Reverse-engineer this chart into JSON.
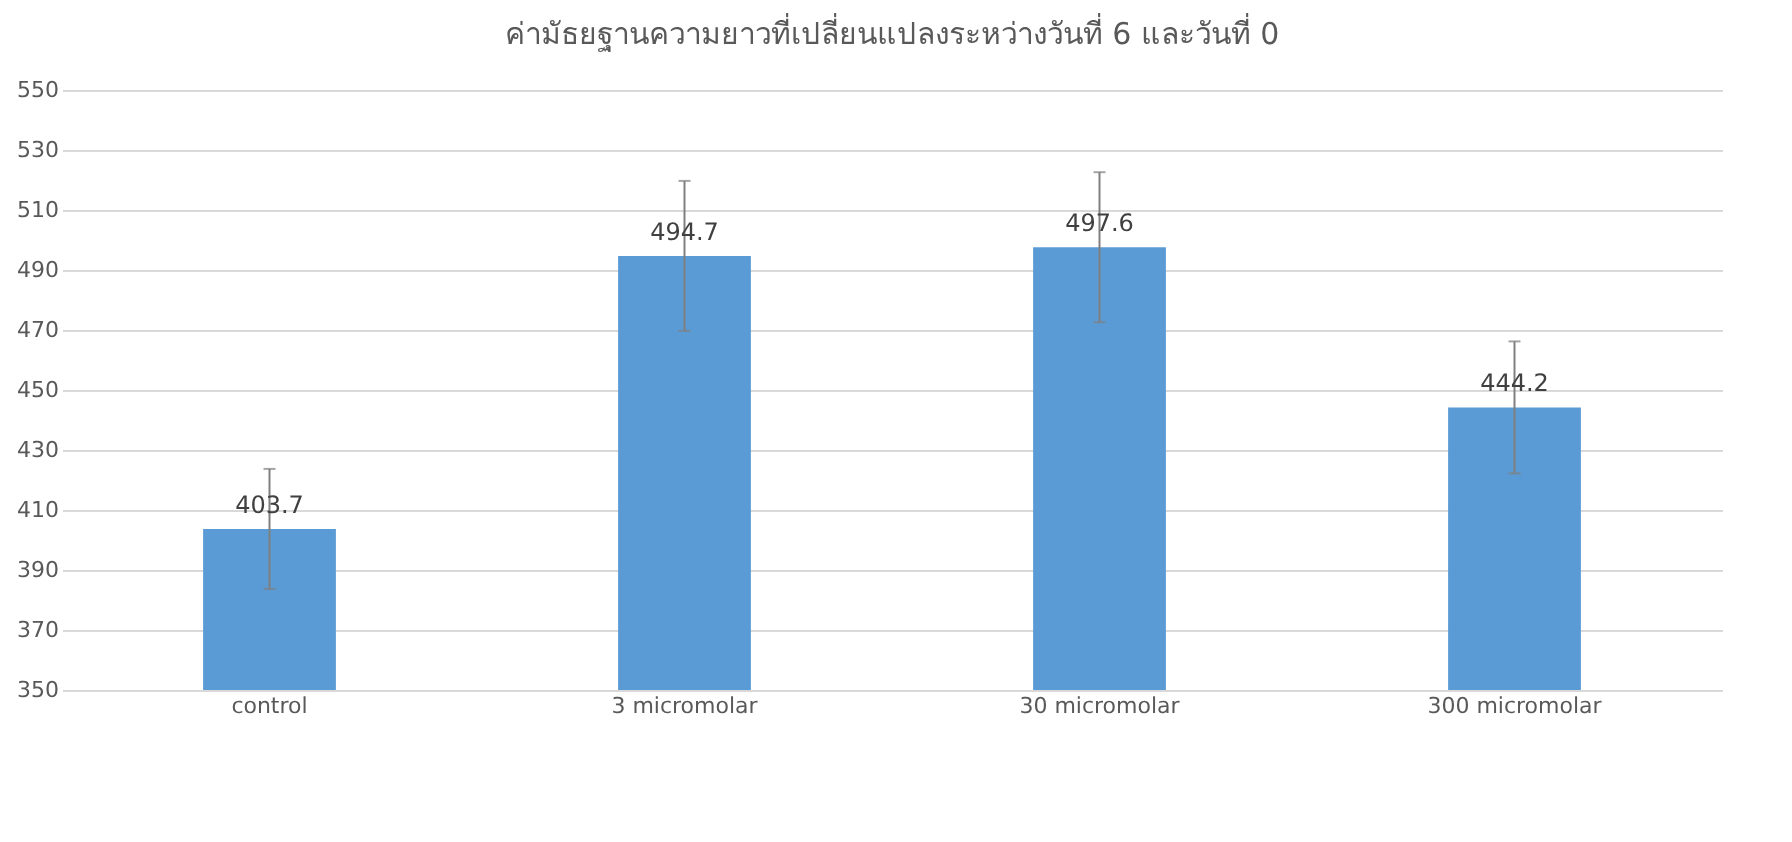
{
  "chart_data": {
    "type": "bar",
    "title": "ค่ามัธยฐานความยาวที่เปลี่ยนแปลงระหว่างวันที่ 6 และวันที่ 0",
    "categories": [
      "control",
      "3 micromolar",
      "30 micromolar",
      "300 micromolar"
    ],
    "values": [
      403.7,
      494.7,
      497.6,
      444.2
    ],
    "errors": [
      20,
      25,
      25,
      22
    ],
    "color": "#5b9bd5",
    "ylim": [
      350,
      550
    ],
    "yticks": [
      350,
      370,
      390,
      410,
      430,
      450,
      470,
      490,
      510,
      530,
      550
    ],
    "grid": "y",
    "data_labels": true
  }
}
